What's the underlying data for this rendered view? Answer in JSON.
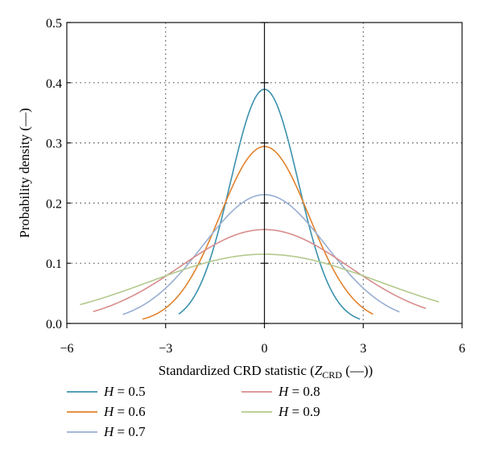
{
  "chart_data": {
    "type": "line",
    "xlabel": "Standardized CRD statistic (Z_CRD (—))",
    "xlabel_main": "Standardized CRD statistic (",
    "xlabel_var": "Z",
    "xlabel_sub": "CRD",
    "xlabel_tail": " (—))",
    "ylabel": "Probability density (—)",
    "xlim": [
      -6,
      6
    ],
    "ylim": [
      0,
      0.5
    ],
    "x_ticks": [
      -6,
      -3,
      0,
      3,
      6
    ],
    "x_tick_labels": [
      "−6",
      "−3",
      "0",
      "3",
      "6"
    ],
    "y_ticks": [
      0,
      0.1,
      0.2,
      0.3,
      0.4,
      0.5
    ],
    "y_tick_labels": [
      "0.0",
      "0.1",
      "0.2",
      "0.3",
      "0.4",
      "0.5"
    ],
    "grid": "dotted",
    "legend_placement": "bottom",
    "series": [
      {
        "name": "H = 0.5",
        "label_var": "H",
        "label_value": " = 0.5",
        "color": "#3a92ad",
        "peak": 0.389,
        "x_range": [
          -2.6,
          2.9
        ]
      },
      {
        "name": "H = 0.6",
        "label_var": "H",
        "label_value": " = 0.6",
        "color": "#e2822c",
        "peak": 0.294,
        "x_range": [
          -3.7,
          3.3
        ]
      },
      {
        "name": "H = 0.7",
        "label_var": "H",
        "label_value": " = 0.7",
        "color": "#97aed2",
        "peak": 0.214,
        "x_range": [
          -4.3,
          4.1
        ]
      },
      {
        "name": "H = 0.8",
        "label_var": "H",
        "label_value": " = 0.8",
        "color": "#d88c8c",
        "peak": 0.156,
        "x_range": [
          -5.2,
          4.9
        ]
      },
      {
        "name": "H = 0.9",
        "label_var": "H",
        "label_value": " = 0.9",
        "color": "#b2c98c",
        "peak": 0.115,
        "x_range": [
          -5.6,
          5.3
        ]
      }
    ]
  }
}
